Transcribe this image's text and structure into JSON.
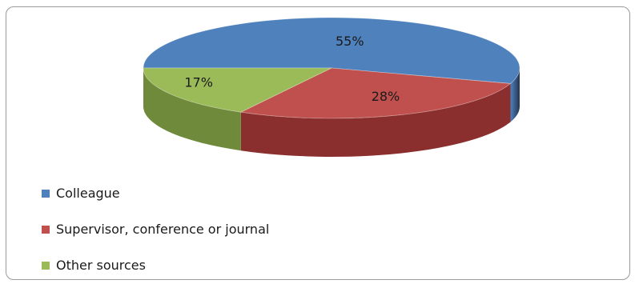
{
  "chart_data": {
    "type": "pie",
    "title": "",
    "is_3d": true,
    "legend_position": "bottom-left",
    "categories": [
      "Colleague",
      "Supervisor, conference or journal",
      "Other sources"
    ],
    "values": [
      55,
      28,
      17
    ],
    "labels": [
      "55%",
      "28%",
      "17%"
    ],
    "colors": [
      "#4f81bd",
      "#c0504d",
      "#9bbb59"
    ],
    "dark_colors": [
      "#23354f",
      "#8a2f2d",
      "#6e8a3a"
    ]
  }
}
